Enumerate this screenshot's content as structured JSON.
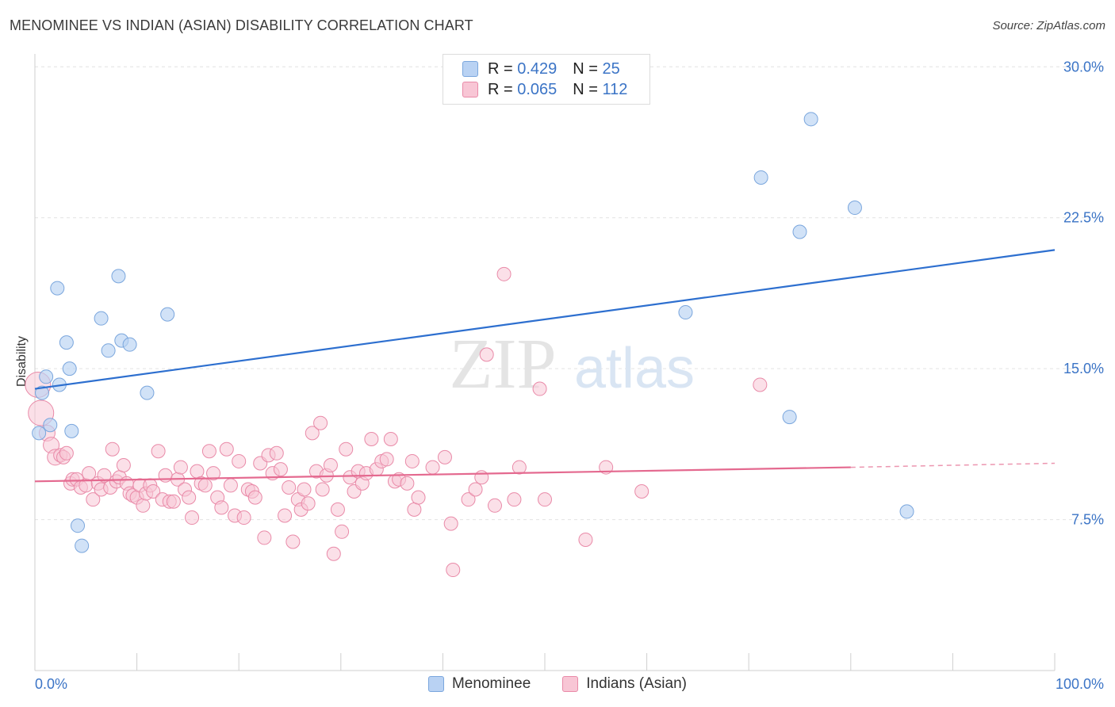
{
  "title": "MENOMINEE VS INDIAN (ASIAN) DISABILITY CORRELATION CHART",
  "source": "Source: ZipAtlas.com",
  "watermark": {
    "zip": "ZIP",
    "atlas": "atlas"
  },
  "legend": {
    "r_label": "R =",
    "n_label": "N =",
    "rows": [
      {
        "r": "0.429",
        "n": "25"
      },
      {
        "r": "0.065",
        "n": "112"
      }
    ]
  },
  "colors": {
    "blue_fill": "#b9d2f3",
    "blue_stroke": "#7aa6dd",
    "blue_line": "#2d6fcf",
    "pink_fill": "#f8c6d5",
    "pink_stroke": "#e98aa8",
    "pink_line": "#e4698f",
    "axis_text": "#3b74c6"
  },
  "chart_data": {
    "type": "scatter",
    "ylabel": "Disability",
    "x_tick_labels": [
      "0.0%",
      "100.0%"
    ],
    "y_tick_labels": [
      "7.5%",
      "15.0%",
      "22.5%",
      "30.0%"
    ],
    "y_ticks": [
      7.5,
      15.0,
      22.5,
      30.0
    ],
    "xlim": [
      0,
      100
    ],
    "ylim": [
      0,
      31.5
    ],
    "grid": "horizontal dashed",
    "legend_placement": "top-center",
    "series": [
      {
        "name": "Menominee",
        "color": "blue",
        "trend": {
          "x": [
            0,
            100
          ],
          "y": [
            14.0,
            20.9
          ]
        },
        "points": [
          [
            0.4,
            11.8
          ],
          [
            0.7,
            13.8
          ],
          [
            1.1,
            14.6
          ],
          [
            1.5,
            12.2
          ],
          [
            2.2,
            19.0
          ],
          [
            2.4,
            14.2
          ],
          [
            3.1,
            16.3
          ],
          [
            3.4,
            15.0
          ],
          [
            3.6,
            11.9
          ],
          [
            4.2,
            7.2
          ],
          [
            4.6,
            6.2
          ],
          [
            6.5,
            17.5
          ],
          [
            7.2,
            15.9
          ],
          [
            8.2,
            19.6
          ],
          [
            8.5,
            16.4
          ],
          [
            9.3,
            16.2
          ],
          [
            11.0,
            13.8
          ],
          [
            13.0,
            17.7
          ],
          [
            63.8,
            17.8
          ],
          [
            71.2,
            24.5
          ],
          [
            74.0,
            12.6
          ],
          [
            75.0,
            21.8
          ],
          [
            76.1,
            27.4
          ],
          [
            80.4,
            23.0
          ],
          [
            85.5,
            7.9
          ]
        ]
      },
      {
        "name": "Indians (Asian)",
        "color": "pink",
        "trend": {
          "x": [
            0,
            80
          ],
          "y": [
            9.4,
            10.1
          ]
        },
        "trend_dashed": {
          "x": [
            80,
            100
          ],
          "y": [
            10.1,
            10.3
          ]
        },
        "points": [
          [
            0.3,
            14.2
          ],
          [
            0.6,
            12.8
          ],
          [
            1.2,
            11.8
          ],
          [
            1.6,
            11.2
          ],
          [
            2.0,
            10.6
          ],
          [
            2.5,
            10.7
          ],
          [
            2.8,
            10.6
          ],
          [
            3.1,
            10.8
          ],
          [
            3.5,
            9.3
          ],
          [
            3.7,
            9.5
          ],
          [
            4.1,
            9.5
          ],
          [
            4.5,
            9.1
          ],
          [
            5.0,
            9.2
          ],
          [
            5.3,
            9.8
          ],
          [
            5.7,
            8.5
          ],
          [
            6.2,
            9.3
          ],
          [
            6.5,
            9.0
          ],
          [
            6.8,
            9.7
          ],
          [
            7.4,
            9.1
          ],
          [
            7.6,
            11.0
          ],
          [
            8.0,
            9.4
          ],
          [
            8.3,
            9.6
          ],
          [
            8.7,
            10.2
          ],
          [
            9.0,
            9.3
          ],
          [
            9.3,
            8.8
          ],
          [
            9.6,
            8.7
          ],
          [
            10.0,
            8.6
          ],
          [
            10.3,
            9.2
          ],
          [
            10.6,
            8.2
          ],
          [
            10.9,
            8.8
          ],
          [
            11.3,
            9.2
          ],
          [
            11.6,
            8.9
          ],
          [
            12.1,
            10.9
          ],
          [
            12.5,
            8.5
          ],
          [
            12.8,
            9.7
          ],
          [
            13.2,
            8.4
          ],
          [
            13.6,
            8.4
          ],
          [
            14.0,
            9.5
          ],
          [
            14.3,
            10.1
          ],
          [
            14.7,
            9.0
          ],
          [
            15.1,
            8.6
          ],
          [
            15.4,
            7.6
          ],
          [
            15.9,
            9.9
          ],
          [
            16.3,
            9.3
          ],
          [
            16.7,
            9.2
          ],
          [
            17.1,
            10.9
          ],
          [
            17.5,
            9.8
          ],
          [
            17.9,
            8.6
          ],
          [
            18.3,
            8.1
          ],
          [
            18.8,
            11.0
          ],
          [
            19.2,
            9.2
          ],
          [
            19.6,
            7.7
          ],
          [
            20.0,
            10.4
          ],
          [
            20.5,
            7.6
          ],
          [
            20.9,
            9.0
          ],
          [
            21.3,
            8.9
          ],
          [
            21.6,
            8.6
          ],
          [
            22.1,
            10.3
          ],
          [
            22.5,
            6.6
          ],
          [
            22.9,
            10.7
          ],
          [
            23.3,
            9.8
          ],
          [
            23.7,
            10.8
          ],
          [
            24.1,
            10.0
          ],
          [
            24.5,
            7.7
          ],
          [
            24.9,
            9.1
          ],
          [
            25.3,
            6.4
          ],
          [
            25.8,
            8.5
          ],
          [
            26.1,
            8.0
          ],
          [
            26.4,
            9.0
          ],
          [
            26.8,
            8.3
          ],
          [
            27.2,
            11.8
          ],
          [
            27.6,
            9.9
          ],
          [
            28.0,
            12.3
          ],
          [
            28.2,
            9.0
          ],
          [
            28.6,
            9.7
          ],
          [
            29.0,
            10.2
          ],
          [
            29.3,
            5.8
          ],
          [
            29.7,
            8.0
          ],
          [
            30.1,
            6.9
          ],
          [
            30.5,
            11.0
          ],
          [
            30.9,
            9.6
          ],
          [
            31.3,
            8.9
          ],
          [
            31.7,
            9.9
          ],
          [
            32.1,
            9.3
          ],
          [
            32.5,
            9.8
          ],
          [
            33.0,
            11.5
          ],
          [
            33.5,
            10.0
          ],
          [
            34.0,
            10.4
          ],
          [
            34.5,
            10.5
          ],
          [
            34.9,
            11.5
          ],
          [
            35.3,
            9.4
          ],
          [
            35.7,
            9.5
          ],
          [
            36.5,
            9.3
          ],
          [
            37.0,
            10.4
          ],
          [
            37.2,
            8.0
          ],
          [
            37.6,
            8.6
          ],
          [
            39.0,
            10.1
          ],
          [
            40.2,
            10.6
          ],
          [
            40.8,
            7.3
          ],
          [
            41.0,
            5.0
          ],
          [
            42.5,
            8.5
          ],
          [
            43.2,
            9.0
          ],
          [
            43.8,
            9.6
          ],
          [
            44.3,
            15.7
          ],
          [
            45.1,
            8.2
          ],
          [
            46.0,
            19.7
          ],
          [
            47.0,
            8.5
          ],
          [
            47.5,
            10.1
          ],
          [
            49.5,
            14.0
          ],
          [
            50.0,
            8.5
          ],
          [
            54.0,
            6.5
          ],
          [
            56.0,
            10.1
          ],
          [
            59.5,
            8.9
          ],
          [
            71.1,
            14.2
          ]
        ]
      }
    ]
  }
}
